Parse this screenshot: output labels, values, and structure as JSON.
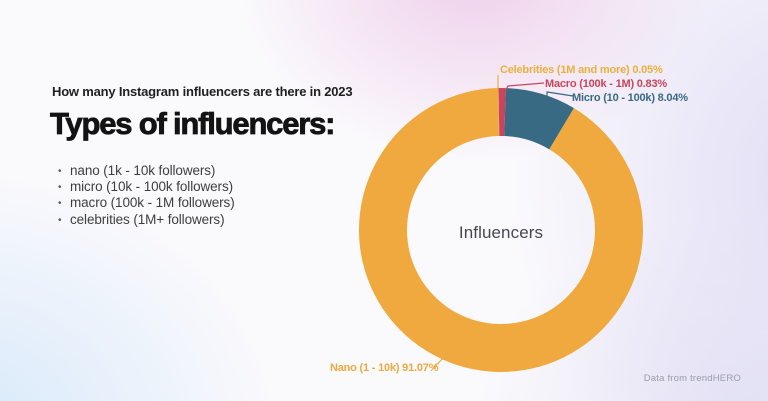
{
  "page": {
    "heading": "How many Instagram influencers are there in 2023",
    "title": "Types of influencers:",
    "bullets": [
      "nano (1k - 10k followers)",
      "micro (10k - 100k followers)",
      "macro (100k - 1M followers)",
      "celebrities (1M+ followers)"
    ],
    "source": "Data from trendHERO"
  },
  "chart_data": {
    "type": "pie",
    "variant": "donut",
    "center_label": "Influencers",
    "unit": "%",
    "direction": "clockwise",
    "legend_position": "none",
    "series": [
      {
        "id": "celebrities",
        "name": "Celebrities (1M and more)",
        "value": 0.05,
        "label": "Celebrities (1M and more) 0.05%",
        "color": "#E9B13C"
      },
      {
        "id": "macro",
        "name": "Macro (100k - 1M)",
        "value": 0.83,
        "label": "Macro (100k - 1M) 0.83%",
        "color": "#C8455C"
      },
      {
        "id": "micro",
        "name": "Micro (10 - 100k)",
        "value": 8.04,
        "label": "Micro (10 - 100k) 8.04%",
        "color": "#396A84"
      },
      {
        "id": "nano",
        "name": "Nano (1 - 10k)",
        "value": 91.07,
        "label": "Nano (1 - 10k) 91.07%",
        "color": "#EFA93E"
      }
    ]
  }
}
